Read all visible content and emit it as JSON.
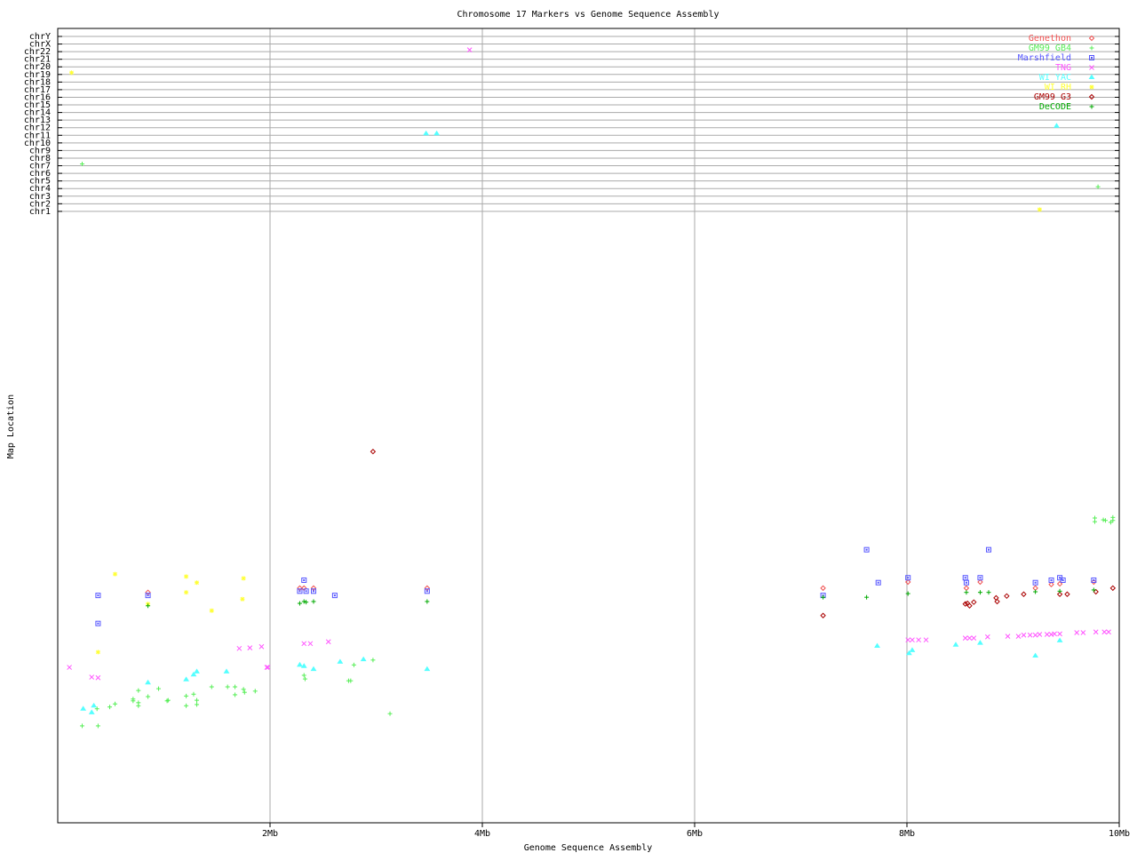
{
  "chart_data": {
    "type": "scatter",
    "title": "Chromosome 17 Markers vs Genome Sequence Assembly",
    "xlabel": "Genome Sequence Assembly",
    "ylabel": "Map Location",
    "xlim": [
      0,
      10
    ],
    "x_unit": "Mb",
    "x_ticks": [
      "2Mb",
      "4Mb",
      "6Mb",
      "8Mb",
      "10Mb"
    ],
    "x_tick_values": [
      2,
      4,
      6,
      8,
      10
    ],
    "grid": true,
    "legend_position": "top-right",
    "chromosome_rows": [
      "chrY",
      "chrX",
      "chr22",
      "chr21",
      "chr20",
      "chr19",
      "chr18",
      "chr17",
      "chr16",
      "chr15",
      "chr14",
      "chr13",
      "chr12",
      "chr11",
      "chr10",
      "chr9",
      "chr8",
      "chr7",
      "chr6",
      "chr5",
      "chr4",
      "chr3",
      "chr2",
      "chr1"
    ],
    "chr17_ylim": [
      0,
      100
    ],
    "series": [
      {
        "name": "Genethon",
        "color": "#f05050",
        "marker": "diamond",
        "points": [
          [
            0.85,
            37.8
          ],
          [
            2.28,
            38.5
          ],
          [
            2.32,
            38.5
          ],
          [
            2.41,
            38.5
          ],
          [
            3.48,
            38.5
          ],
          [
            7.21,
            38.5
          ],
          [
            8.01,
            39.5
          ],
          [
            8.56,
            38.5
          ],
          [
            8.69,
            39.5
          ],
          [
            9.21,
            38.5
          ],
          [
            9.36,
            39.1
          ],
          [
            9.44,
            39.2
          ],
          [
            9.76,
            39.5
          ]
        ]
      },
      {
        "name": "GM99 GB4",
        "color": "#55ee55",
        "marker": "plus",
        "points": [
          [
            0.23,
            15.9
          ],
          [
            0.38,
            15.9
          ],
          [
            0.37,
            18.7
          ],
          [
            0.49,
            19.0
          ],
          [
            0.54,
            19.5
          ],
          [
            0.71,
            20.3
          ],
          [
            0.71,
            20.0
          ],
          [
            0.76,
            21.7
          ],
          [
            0.76,
            19.7
          ],
          [
            0.76,
            19.2
          ],
          [
            0.85,
            20.7
          ],
          [
            0.95,
            22.0
          ],
          [
            1.03,
            20.0
          ],
          [
            1.04,
            20.1
          ],
          [
            1.21,
            20.8
          ],
          [
            1.21,
            19.2
          ],
          [
            1.28,
            21.1
          ],
          [
            1.31,
            20.1
          ],
          [
            1.31,
            19.4
          ],
          [
            1.45,
            22.3
          ],
          [
            1.6,
            22.3
          ],
          [
            1.67,
            22.3
          ],
          [
            1.67,
            21.0
          ],
          [
            1.75,
            21.9
          ],
          [
            1.76,
            21.4
          ],
          [
            1.86,
            21.6
          ],
          [
            2.32,
            24.2
          ],
          [
            2.33,
            23.6
          ],
          [
            2.74,
            23.3
          ],
          [
            2.76,
            23.3
          ],
          [
            2.79,
            25.9
          ],
          [
            2.97,
            26.7
          ],
          [
            3.13,
            17.9
          ],
          [
            9.77,
            50.0
          ],
          [
            9.77,
            49.4
          ],
          [
            9.85,
            49.7
          ],
          [
            9.87,
            49.6
          ],
          [
            9.94,
            50.1
          ],
          [
            9.92,
            49.3
          ],
          [
            9.94,
            49.6
          ]
        ],
        "other_chromosomes": [
          {
            "chr": "chr7",
            "x": 0.23
          },
          {
            "chr": "chr4",
            "x": 9.8
          }
        ]
      },
      {
        "name": "Marshfield",
        "color": "#5555ff",
        "marker": "square",
        "points": [
          [
            0.38,
            37.3
          ],
          [
            0.85,
            37.3
          ],
          [
            0.38,
            32.7
          ],
          [
            2.32,
            39.8
          ],
          [
            2.28,
            38.0
          ],
          [
            2.34,
            38.0
          ],
          [
            2.41,
            38.0
          ],
          [
            2.61,
            37.3
          ],
          [
            3.48,
            38.0
          ],
          [
            7.62,
            44.8
          ],
          [
            8.77,
            44.8
          ],
          [
            7.21,
            37.3
          ],
          [
            7.73,
            39.4
          ],
          [
            8.01,
            40.2
          ],
          [
            8.55,
            40.2
          ],
          [
            8.56,
            39.4
          ],
          [
            8.69,
            40.2
          ],
          [
            9.21,
            39.4
          ],
          [
            9.36,
            39.8
          ],
          [
            9.44,
            40.2
          ],
          [
            9.47,
            39.8
          ],
          [
            9.76,
            39.8
          ]
        ]
      },
      {
        "name": "TNG",
        "color": "#ff55ff",
        "marker": "x",
        "points": [
          [
            0.11,
            25.5
          ],
          [
            0.32,
            23.9
          ],
          [
            0.38,
            23.8
          ],
          [
            1.71,
            28.6
          ],
          [
            1.81,
            28.7
          ],
          [
            1.92,
            28.9
          ],
          [
            1.97,
            25.5
          ],
          [
            1.98,
            25.5
          ],
          [
            2.32,
            29.4
          ],
          [
            2.38,
            29.4
          ],
          [
            2.55,
            29.7
          ],
          [
            8.01,
            30.0
          ],
          [
            8.05,
            30.0
          ],
          [
            8.11,
            30.0
          ],
          [
            8.18,
            30.0
          ],
          [
            8.55,
            30.3
          ],
          [
            8.59,
            30.3
          ],
          [
            8.63,
            30.3
          ],
          [
            8.76,
            30.5
          ],
          [
            8.95,
            30.6
          ],
          [
            9.05,
            30.6
          ],
          [
            9.1,
            30.8
          ],
          [
            9.16,
            30.8
          ],
          [
            9.21,
            30.8
          ],
          [
            9.25,
            30.9
          ],
          [
            9.32,
            30.9
          ],
          [
            9.36,
            30.9
          ],
          [
            9.39,
            31.0
          ],
          [
            9.44,
            31.0
          ],
          [
            9.6,
            31.2
          ],
          [
            9.66,
            31.2
          ],
          [
            9.78,
            31.3
          ],
          [
            9.86,
            31.3
          ],
          [
            9.9,
            31.3
          ]
        ],
        "other_chromosomes": [
          {
            "chr": "chr22",
            "x": 3.88
          }
        ]
      },
      {
        "name": "WI YAC",
        "color": "#55ffff",
        "marker": "triangle",
        "points": [
          [
            0.24,
            18.7
          ],
          [
            0.34,
            19.2
          ],
          [
            0.32,
            18.1
          ],
          [
            0.85,
            23.0
          ],
          [
            1.21,
            23.5
          ],
          [
            1.28,
            24.3
          ],
          [
            1.31,
            24.8
          ],
          [
            1.59,
            24.8
          ],
          [
            2.28,
            25.9
          ],
          [
            2.32,
            25.7
          ],
          [
            2.41,
            25.2
          ],
          [
            2.66,
            26.4
          ],
          [
            2.88,
            26.8
          ],
          [
            3.48,
            25.2
          ],
          [
            7.72,
            29.0
          ],
          [
            8.02,
            27.8
          ],
          [
            8.05,
            28.3
          ],
          [
            8.46,
            29.2
          ],
          [
            8.69,
            29.5
          ],
          [
            9.21,
            27.4
          ],
          [
            9.44,
            29.9
          ]
        ],
        "other_chromosomes": [
          {
            "chr": "chr11",
            "x": 3.47
          },
          {
            "chr": "chr11",
            "x": 3.57
          },
          {
            "chr": "chr12",
            "x": 9.41
          }
        ]
      },
      {
        "name": "WI RH",
        "color": "#ffff33",
        "marker": "asterisk",
        "points": [
          [
            0.54,
            40.8
          ],
          [
            1.21,
            40.4
          ],
          [
            1.31,
            39.4
          ],
          [
            1.21,
            37.8
          ],
          [
            1.75,
            40.1
          ],
          [
            1.74,
            36.7
          ],
          [
            1.45,
            34.8
          ],
          [
            0.38,
            28.0
          ],
          [
            0.85,
            35.9
          ]
        ],
        "other_chromosomes": [
          {
            "chr": "chr19",
            "x": 0.13
          },
          {
            "chr": "chr1",
            "x": 9.25
          }
        ]
      },
      {
        "name": "GM99 G3",
        "color": "#aa0000",
        "marker": "diamond",
        "points": [
          [
            2.97,
            60.9
          ],
          [
            7.21,
            34.0
          ],
          [
            8.55,
            35.9
          ],
          [
            8.57,
            36.0
          ],
          [
            8.59,
            35.6
          ],
          [
            8.63,
            36.2
          ],
          [
            8.84,
            36.9
          ],
          [
            8.85,
            36.3
          ],
          [
            8.94,
            37.2
          ],
          [
            9.1,
            37.5
          ],
          [
            9.44,
            37.5
          ],
          [
            9.51,
            37.5
          ],
          [
            9.78,
            37.9
          ],
          [
            9.94,
            38.5
          ]
        ]
      },
      {
        "name": "DeCODE",
        "color": "#00aa00",
        "marker": "plus",
        "points": [
          [
            0.85,
            35.6
          ],
          [
            2.28,
            36.0
          ],
          [
            2.32,
            36.3
          ],
          [
            2.34,
            36.2
          ],
          [
            2.41,
            36.3
          ],
          [
            3.48,
            36.3
          ],
          [
            7.21,
            37.0
          ],
          [
            7.62,
            37.0
          ],
          [
            8.01,
            37.6
          ],
          [
            8.56,
            37.8
          ],
          [
            8.69,
            37.8
          ],
          [
            8.77,
            37.8
          ],
          [
            9.21,
            37.9
          ],
          [
            9.44,
            38.0
          ],
          [
            9.76,
            38.2
          ]
        ]
      }
    ]
  }
}
